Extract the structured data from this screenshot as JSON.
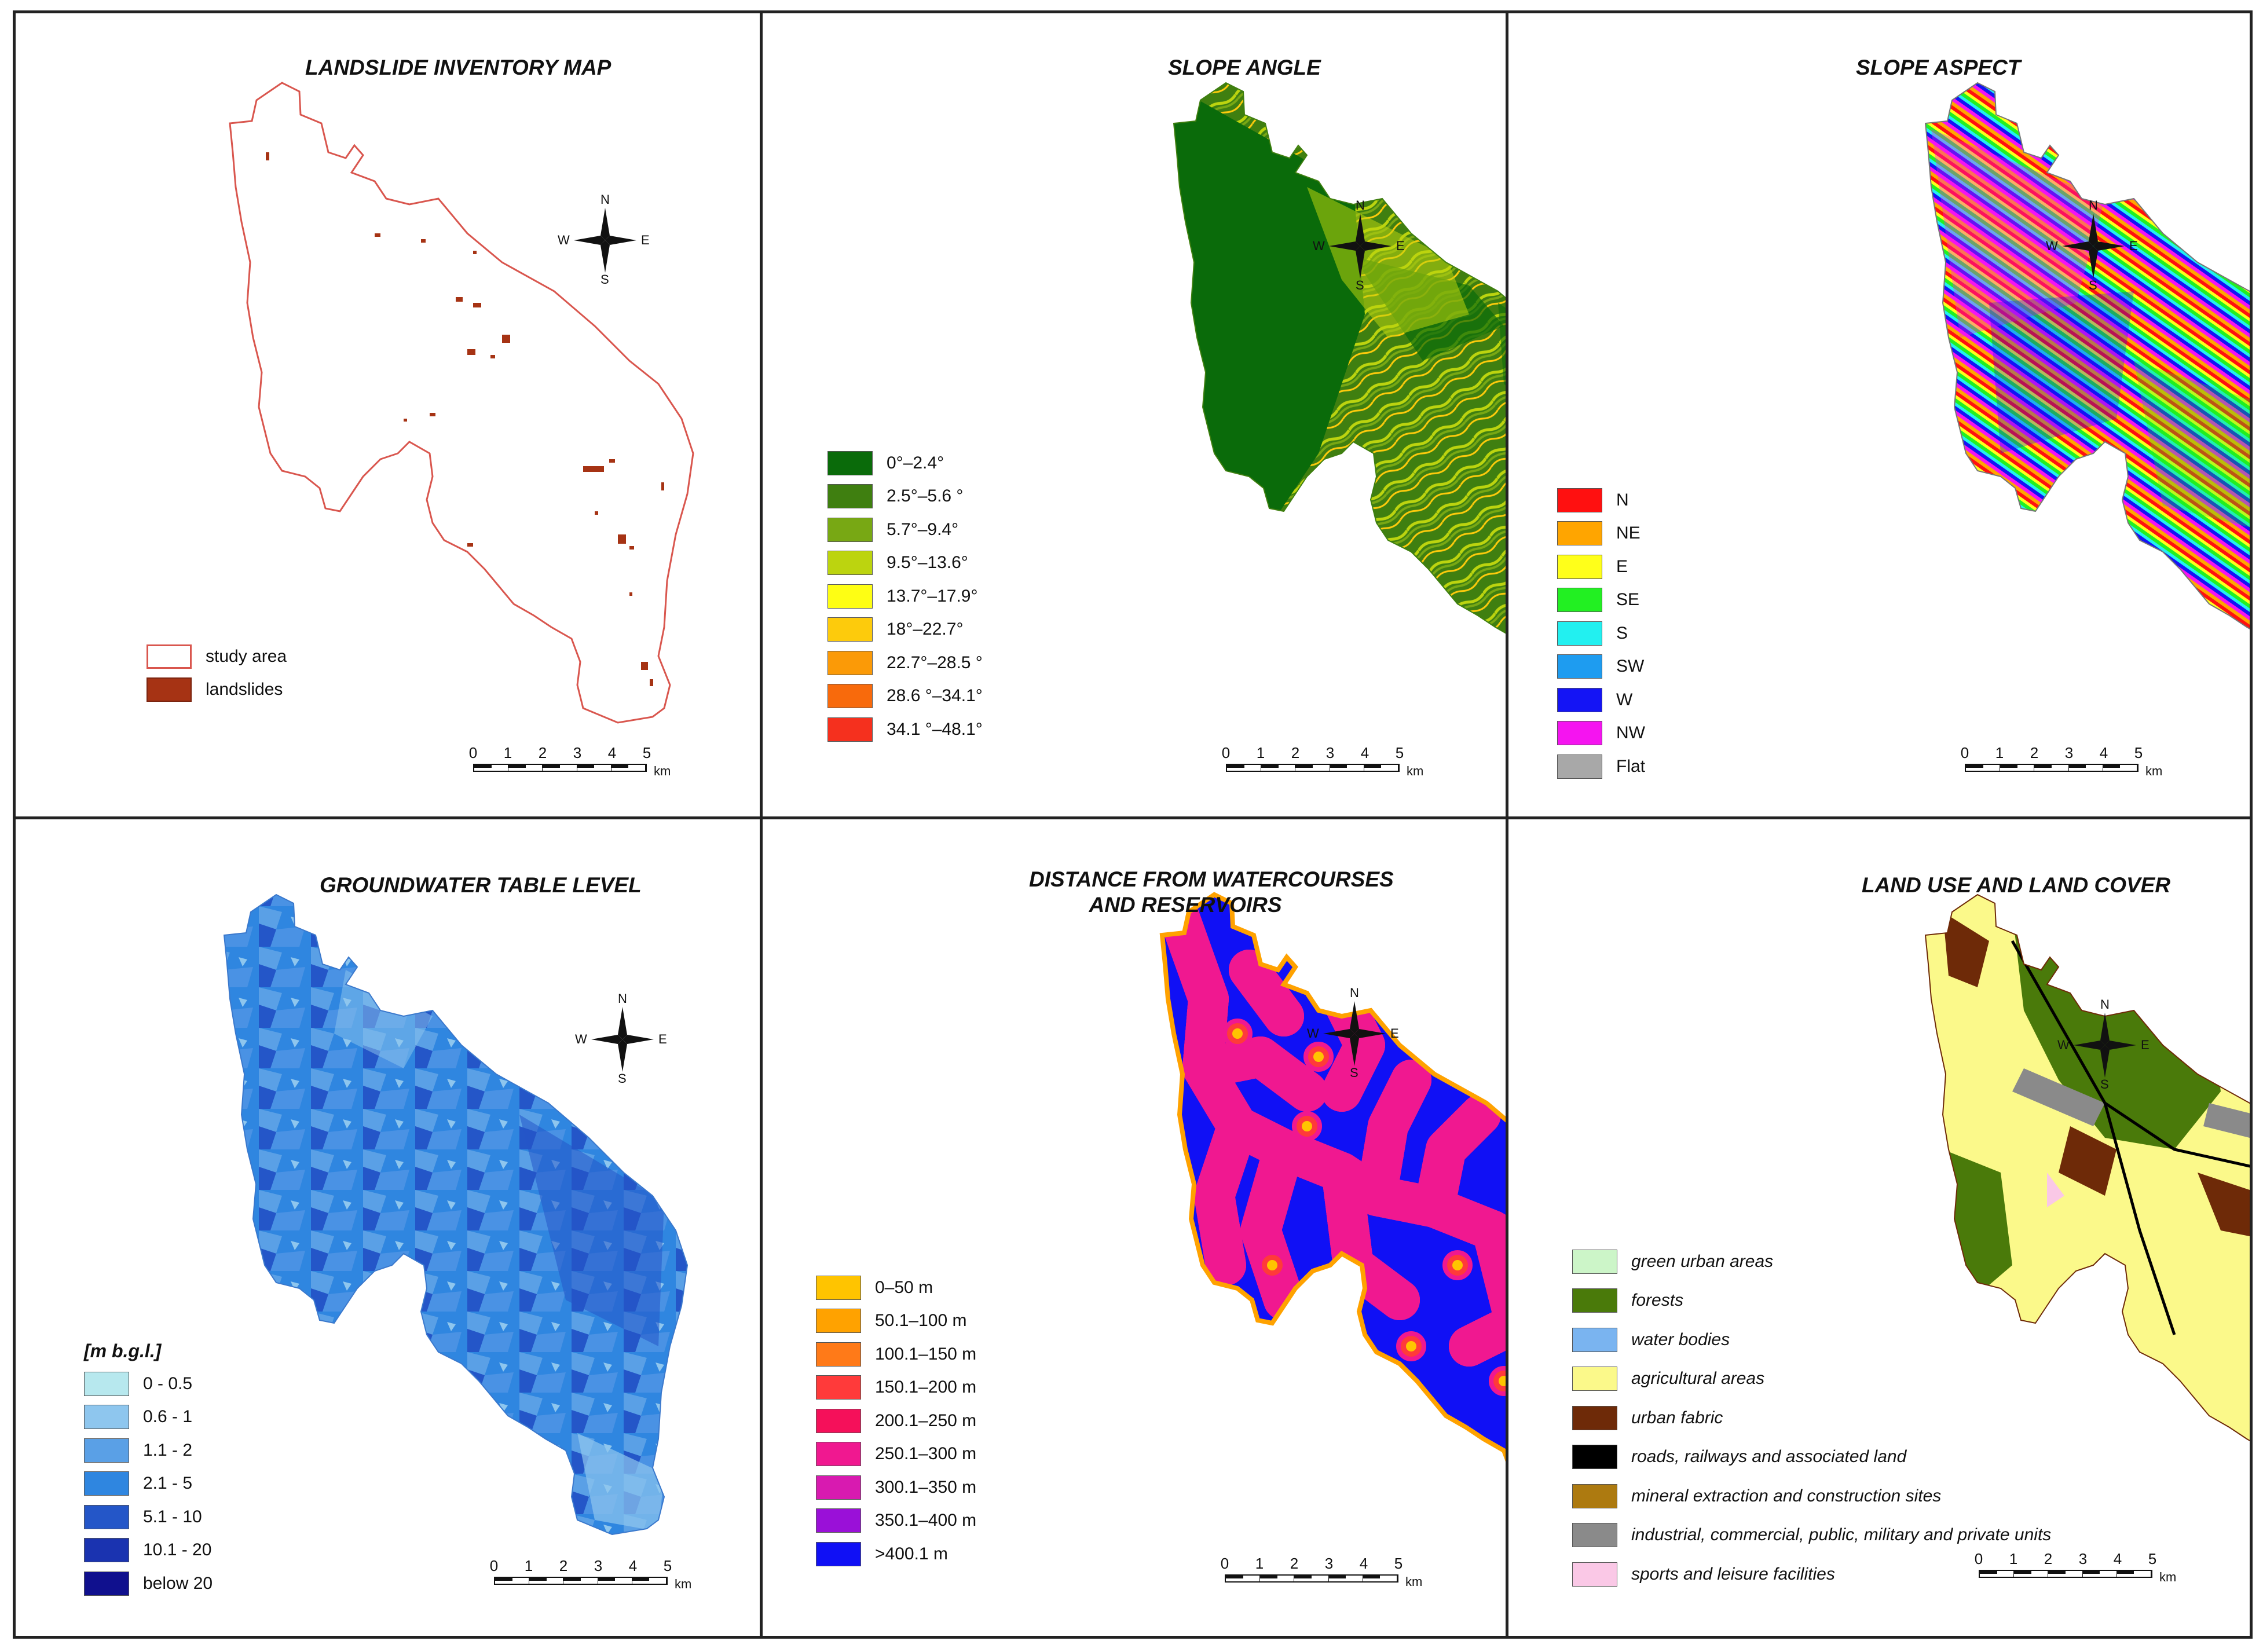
{
  "panels": {
    "inventory": {
      "title": "LANDSLIDE INVENTORY MAP",
      "legend": [
        {
          "label": "study area",
          "fill": "#ffffff",
          "stroke": "#d9564e"
        },
        {
          "label": "landslides",
          "fill": "#a63314",
          "stroke": "#7a2410"
        }
      ]
    },
    "slope_angle": {
      "title": "SLOPE ANGLE",
      "legend": [
        {
          "label": "0°–2.4°",
          "color": "#0a6b0a"
        },
        {
          "label": "2.5°–5.6 °",
          "color": "#3f7f10"
        },
        {
          "label": "5.7°–9.4°",
          "color": "#78a814"
        },
        {
          "label": "9.5°–13.6°",
          "color": "#bcd40f"
        },
        {
          "label": "13.7°–17.9°",
          "color": "#fefe14"
        },
        {
          "label": "18°–22.7°",
          "color": "#fdcb0c"
        },
        {
          "label": "22.7°–28.5 °",
          "color": "#fb9a07"
        },
        {
          "label": "28.6 °–34.1°",
          "color": "#f86a0c"
        },
        {
          "label": "34.1 °–48.1°",
          "color": "#f5301e"
        }
      ]
    },
    "slope_aspect": {
      "title": "SLOPE ASPECT",
      "legend": [
        {
          "label": "N",
          "color": "#ff1010"
        },
        {
          "label": "NE",
          "color": "#ffa500"
        },
        {
          "label": "E",
          "color": "#ffff1a"
        },
        {
          "label": "SE",
          "color": "#22f022"
        },
        {
          "label": "S",
          "color": "#22f0f0"
        },
        {
          "label": "SW",
          "color": "#1e9cf0"
        },
        {
          "label": "W",
          "color": "#1414f5"
        },
        {
          "label": "NW",
          "color": "#f514f0"
        },
        {
          "label": "Flat",
          "color": "#a8a8a8"
        }
      ]
    },
    "groundwater": {
      "title": "GROUNDWATER TABLE LEVEL",
      "legend_title": "[m b.g.l.]",
      "legend": [
        {
          "label": "0 - 0.5",
          "color": "#b7e8ee"
        },
        {
          "label": "0.6 - 1",
          "color": "#8ec6ee"
        },
        {
          "label": "1.1 - 2",
          "color": "#5aa0e6"
        },
        {
          "label": "2.1 - 5",
          "color": "#2f86e0"
        },
        {
          "label": "5.1 - 10",
          "color": "#2456c8"
        },
        {
          "label": "10.1 - 20",
          "color": "#1a33b0"
        },
        {
          "label": "below 20",
          "color": "#10108e"
        }
      ]
    },
    "distance": {
      "title_line1": "DISTANCE FROM WATERCOURSES",
      "title_line2": "AND RESERVOIRS",
      "legend": [
        {
          "label": "0–50 m",
          "color": "#ffc400"
        },
        {
          "label": "50.1–100 m",
          "color": "#ffa200"
        },
        {
          "label": "100.1–150 m",
          "color": "#ff7a18"
        },
        {
          "label": "150.1–200 m",
          "color": "#ff3a3a"
        },
        {
          "label": "200.1–250 m",
          "color": "#f5105a"
        },
        {
          "label": "250.1–300 m",
          "color": "#f01890"
        },
        {
          "label": "300.1–350 m",
          "color": "#d81ab0"
        },
        {
          "label": "350.1–400 m",
          "color": "#9a10d8"
        },
        {
          "label": ">400.1 m",
          "color": "#1010f5"
        }
      ]
    },
    "landuse": {
      "title": "LAND USE AND LAND COVER",
      "legend": [
        {
          "label": "green urban areas",
          "color": "#ccf5c8"
        },
        {
          "label": "forests",
          "color": "#4a7a0a"
        },
        {
          "label": "water bodies",
          "color": "#7ab4f0"
        },
        {
          "label": "agricultural areas",
          "color": "#fbf98a"
        },
        {
          "label": "urban fabric",
          "color": "#6e2a08"
        },
        {
          "label": "roads, railways and associated land",
          "color": "#000000"
        },
        {
          "label": "mineral extraction and construction sites",
          "color": "#ad7a10"
        },
        {
          "label": "industrial, commercial, public, military and private units",
          "color": "#8a8a8a"
        },
        {
          "label": "sports and leisure facilities",
          "color": "#fac8e6"
        }
      ]
    }
  },
  "scale": {
    "ticks": [
      "0",
      "1",
      "2",
      "3",
      "4",
      "5"
    ],
    "unit": "km"
  },
  "compass": {
    "n": "N",
    "s": "S",
    "e": "E",
    "w": "W"
  }
}
